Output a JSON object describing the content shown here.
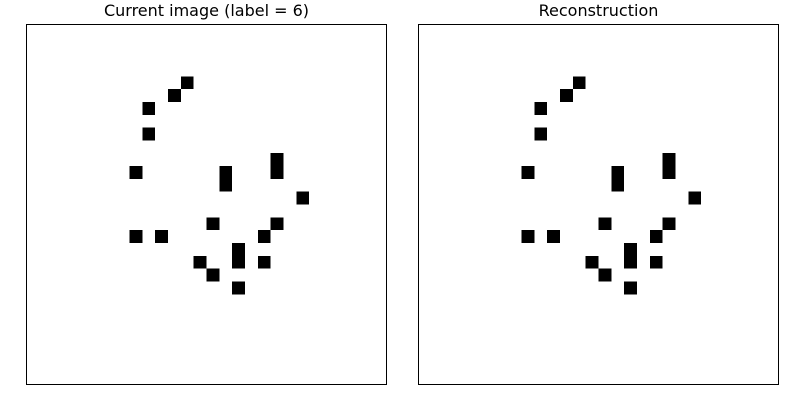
{
  "figure": {
    "panels": [
      {
        "title": "Current image (label = 6)"
      },
      {
        "title": "Reconstruction"
      }
    ]
  },
  "chart_data": [
    {
      "type": "heatmap",
      "title": "Current image (label = 6)",
      "grid_size": [
        28,
        28
      ],
      "colormap": "binary",
      "background_color": "#ffffff",
      "pixel_color": "#000000",
      "axes_visible": false,
      "grid": false,
      "on_pixels": [
        [
          4,
          12
        ],
        [
          5,
          11
        ],
        [
          6,
          9
        ],
        [
          8,
          9
        ],
        [
          11,
          8
        ],
        [
          11,
          15
        ],
        [
          10,
          19
        ],
        [
          11,
          19
        ],
        [
          12,
          15
        ],
        [
          13,
          21
        ],
        [
          15,
          14
        ],
        [
          15,
          19
        ],
        [
          16,
          8
        ],
        [
          16,
          10
        ],
        [
          16,
          18
        ],
        [
          17,
          16
        ],
        [
          18,
          16
        ],
        [
          18,
          13
        ],
        [
          18,
          18
        ],
        [
          19,
          14
        ],
        [
          20,
          16
        ]
      ]
    },
    {
      "type": "heatmap",
      "title": "Reconstruction",
      "grid_size": [
        28,
        28
      ],
      "colormap": "binary",
      "background_color": "#ffffff",
      "pixel_color": "#000000",
      "axes_visible": false,
      "grid": false,
      "on_pixels": [
        [
          4,
          12
        ],
        [
          5,
          11
        ],
        [
          6,
          9
        ],
        [
          8,
          9
        ],
        [
          11,
          8
        ],
        [
          11,
          15
        ],
        [
          10,
          19
        ],
        [
          11,
          19
        ],
        [
          12,
          15
        ],
        [
          13,
          21
        ],
        [
          15,
          14
        ],
        [
          15,
          19
        ],
        [
          16,
          8
        ],
        [
          16,
          10
        ],
        [
          16,
          18
        ],
        [
          17,
          16
        ],
        [
          18,
          16
        ],
        [
          18,
          13
        ],
        [
          18,
          18
        ],
        [
          19,
          14
        ],
        [
          20,
          16
        ]
      ]
    }
  ]
}
